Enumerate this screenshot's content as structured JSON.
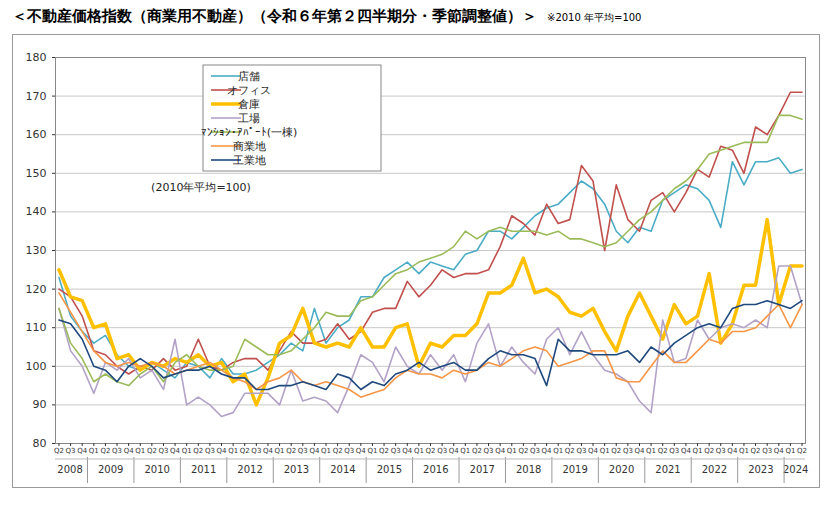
{
  "chart_data": {
    "type": "line",
    "title": "＜不動産価格指数（商業用不動産）（令和６年第２四半期分・季節調整値）＞",
    "subtitle": "※2010 年平均=100",
    "annotation": "(2010年平均=100)",
    "categories": [
      "Q2",
      "Q3",
      "Q4",
      "Q1",
      "Q2",
      "Q3",
      "Q4",
      "Q1",
      "Q2",
      "Q3",
      "Q4",
      "Q1",
      "Q2",
      "Q3",
      "Q4",
      "Q1",
      "Q2",
      "Q3",
      "Q4",
      "Q1",
      "Q2",
      "Q3",
      "Q4",
      "Q1",
      "Q2",
      "Q3",
      "Q4",
      "Q1",
      "Q2",
      "Q3",
      "Q4",
      "Q1",
      "Q2",
      "Q3",
      "Q4",
      "Q1",
      "Q2",
      "Q3",
      "Q4",
      "Q1",
      "Q2",
      "Q3",
      "Q4",
      "Q1",
      "Q2",
      "Q3",
      "Q4",
      "Q1",
      "Q2",
      "Q3",
      "Q4",
      "Q1",
      "Q2",
      "Q3",
      "Q4",
      "Q1",
      "Q2",
      "Q3",
      "Q4",
      "Q1",
      "Q2",
      "Q3",
      "Q4",
      "Q1",
      "Q2"
    ],
    "years": [
      "2008",
      "2008",
      "2008",
      "2009",
      "2009",
      "2009",
      "2009",
      "2010",
      "2010",
      "2010",
      "2010",
      "2011",
      "2011",
      "2011",
      "2011",
      "2012",
      "2012",
      "2012",
      "2012",
      "2013",
      "2013",
      "2013",
      "2013",
      "2014",
      "2014",
      "2014",
      "2014",
      "2015",
      "2015",
      "2015",
      "2015",
      "2016",
      "2016",
      "2016",
      "2016",
      "2017",
      "2017",
      "2017",
      "2017",
      "2018",
      "2018",
      "2018",
      "2018",
      "2019",
      "2019",
      "2019",
      "2019",
      "2020",
      "2020",
      "2020",
      "2020",
      "2021",
      "2021",
      "2021",
      "2021",
      "2022",
      "2022",
      "2022",
      "2022",
      "2023",
      "2023",
      "2023",
      "2023",
      "2024",
      "2024"
    ],
    "series": [
      {
        "name": "店舗",
        "color": "#4bacc6",
        "line_style": "solid",
        "values": [
          123,
          113,
          109,
          106,
          108,
          103,
          100,
          99,
          101,
          99,
          97,
          101,
          100,
          97,
          102,
          98,
          98,
          99,
          101,
          103,
          106,
          104,
          115,
          106,
          110,
          112,
          118,
          118,
          123,
          125,
          127,
          124,
          127,
          126,
          125,
          129,
          130,
          135,
          135,
          133,
          136,
          139,
          141,
          142,
          145,
          148,
          146,
          142,
          135,
          132,
          136,
          135,
          143,
          145,
          147,
          146,
          143,
          136,
          153,
          147,
          153,
          153,
          154,
          150,
          151
        ]
      },
      {
        "name": "オフィス",
        "color": "#c0504d",
        "line_style": "solid",
        "values": [
          120,
          118,
          113,
          104,
          103,
          100,
          98,
          100,
          99,
          102,
          99,
          100,
          107,
          100,
          99,
          101,
          102,
          102,
          99,
          104,
          109,
          106,
          106,
          107,
          111,
          107,
          109,
          114,
          115,
          115,
          122,
          118,
          121,
          125,
          123,
          124,
          124,
          125,
          131,
          139,
          137,
          134,
          142,
          137,
          138,
          152,
          148,
          130,
          147,
          138,
          135,
          143,
          145,
          140,
          145,
          151,
          149,
          157,
          156,
          150,
          162,
          160,
          165,
          171,
          171
        ]
      },
      {
        "name": "倉庫",
        "color": "#ffc000",
        "line_style": "thick",
        "values": [
          125,
          118,
          117,
          110,
          111,
          102,
          103,
          99,
          101,
          100,
          102,
          101,
          103,
          100,
          101,
          96,
          98,
          90,
          97,
          106,
          108,
          115,
          106,
          105,
          106,
          105,
          110,
          105,
          105,
          110,
          111,
          100,
          106,
          105,
          108,
          108,
          111,
          119,
          119,
          121,
          128,
          119,
          120,
          118,
          114,
          113,
          115,
          109,
          104,
          113,
          119,
          113,
          107,
          116,
          111,
          113,
          124,
          106,
          111,
          121,
          121,
          138,
          116,
          126,
          126
        ]
      },
      {
        "name": "工場",
        "color": "#b3a2c7",
        "line_style": "solid",
        "values": [
          115,
          104,
          100,
          93,
          101,
          99,
          102,
          97,
          99,
          94,
          107,
          90,
          92,
          90,
          87,
          88,
          93,
          93,
          93,
          90,
          99,
          91,
          92,
          91,
          88,
          95,
          103,
          101,
          96,
          105,
          100,
          98,
          103,
          99,
          103,
          96,
          106,
          111,
          100,
          105,
          101,
          98,
          107,
          110,
          103,
          109,
          103,
          99,
          98,
          96,
          91,
          88,
          112,
          101,
          102,
          112,
          107,
          110,
          111,
          110,
          112,
          110,
          126,
          126,
          116
        ]
      },
      {
        "name": "ﾏﾝｼｮﾝ・ｱﾊﾟｰﾄ(一棟)",
        "color": "#9bbb59",
        "line_style": "solid",
        "values": [
          115,
          106,
          102,
          96,
          98,
          96,
          95,
          98,
          100,
          96,
          101,
          103,
          100,
          99,
          99,
          100,
          107,
          105,
          103,
          103,
          104,
          107,
          110,
          114,
          113,
          113,
          117,
          118,
          121,
          124,
          125,
          127,
          128,
          129,
          131,
          135,
          133,
          135,
          136,
          135,
          135,
          135,
          134,
          135,
          133,
          133,
          132,
          131,
          132,
          135,
          138,
          140,
          143,
          146,
          148,
          151,
          155,
          156,
          157,
          158,
          158,
          158,
          165,
          165,
          164
        ]
      },
      {
        "name": "商業地",
        "color": "#f79646",
        "line_style": "solid",
        "values": [
          119,
          114,
          109,
          104,
          101,
          100,
          101,
          100,
          101,
          100,
          98,
          99,
          100,
          101,
          99,
          97,
          96,
          94,
          96,
          97,
          99,
          96,
          95,
          96,
          95,
          94,
          92,
          93,
          94,
          97,
          99,
          98,
          98,
          97,
          99,
          98,
          99,
          101,
          100,
          102,
          104,
          105,
          104,
          100,
          101,
          102,
          104,
          104,
          97,
          96,
          96,
          100,
          104,
          101,
          101,
          104,
          107,
          106,
          109,
          109,
          110,
          113,
          116,
          110,
          116
        ]
      },
      {
        "name": "工業地",
        "color": "#1f497d",
        "line_style": "solid",
        "values": [
          112,
          111,
          107,
          100,
          99,
          96,
          100,
          102,
          100,
          97,
          98,
          99,
          99,
          100,
          98,
          97,
          97,
          94,
          94,
          95,
          95,
          96,
          95,
          94,
          98,
          97,
          94,
          96,
          95,
          98,
          99,
          101,
          99,
          100,
          101,
          99,
          99,
          102,
          104,
          103,
          103,
          102,
          95,
          107,
          104,
          104,
          103,
          103,
          103,
          104,
          101,
          105,
          103,
          106,
          108,
          110,
          111,
          110,
          115,
          116,
          116,
          117,
          116,
          115,
          117
        ]
      }
    ],
    "ylim": [
      80,
      180
    ],
    "yticks": [
      80,
      90,
      100,
      110,
      120,
      130,
      140,
      150,
      160,
      170,
      180
    ],
    "grid": true,
    "legend": "top-left"
  }
}
